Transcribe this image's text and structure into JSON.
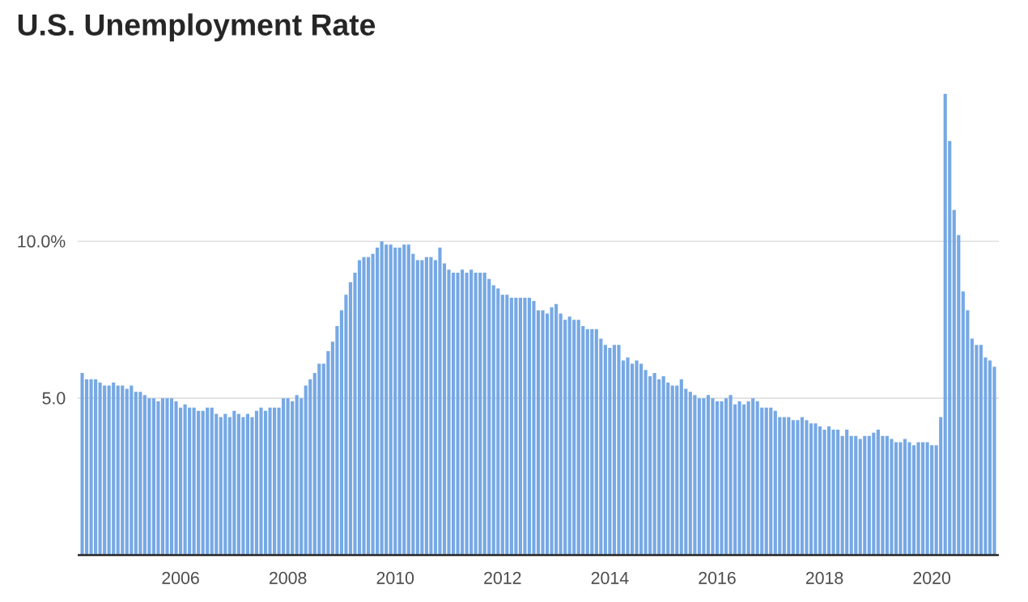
{
  "chart_data": {
    "type": "bar",
    "title": "U.S. Unemployment Rate",
    "color": "#76a8e4",
    "grid": "y",
    "x": [
      "2004-03",
      "2004-04",
      "2004-05",
      "2004-06",
      "2004-07",
      "2004-08",
      "2004-09",
      "2004-10",
      "2004-11",
      "2004-12",
      "2005-01",
      "2005-02",
      "2005-03",
      "2005-04",
      "2005-05",
      "2005-06",
      "2005-07",
      "2005-08",
      "2005-09",
      "2005-10",
      "2005-11",
      "2005-12",
      "2006-01",
      "2006-02",
      "2006-03",
      "2006-04",
      "2006-05",
      "2006-06",
      "2006-07",
      "2006-08",
      "2006-09",
      "2006-10",
      "2006-11",
      "2006-12",
      "2007-01",
      "2007-02",
      "2007-03",
      "2007-04",
      "2007-05",
      "2007-06",
      "2007-07",
      "2007-08",
      "2007-09",
      "2007-10",
      "2007-11",
      "2007-12",
      "2008-01",
      "2008-02",
      "2008-03",
      "2008-04",
      "2008-05",
      "2008-06",
      "2008-07",
      "2008-08",
      "2008-09",
      "2008-10",
      "2008-11",
      "2008-12",
      "2009-01",
      "2009-02",
      "2009-03",
      "2009-04",
      "2009-05",
      "2009-06",
      "2009-07",
      "2009-08",
      "2009-09",
      "2009-10",
      "2009-11",
      "2009-12",
      "2010-01",
      "2010-02",
      "2010-03",
      "2010-04",
      "2010-05",
      "2010-06",
      "2010-07",
      "2010-08",
      "2010-09",
      "2010-10",
      "2010-11",
      "2010-12",
      "2011-01",
      "2011-02",
      "2011-03",
      "2011-04",
      "2011-05",
      "2011-06",
      "2011-07",
      "2011-08",
      "2011-09",
      "2011-10",
      "2011-11",
      "2011-12",
      "2012-01",
      "2012-02",
      "2012-03",
      "2012-04",
      "2012-05",
      "2012-06",
      "2012-07",
      "2012-08",
      "2012-09",
      "2012-10",
      "2012-11",
      "2012-12",
      "2013-01",
      "2013-02",
      "2013-03",
      "2013-04",
      "2013-05",
      "2013-06",
      "2013-07",
      "2013-08",
      "2013-09",
      "2013-10",
      "2013-11",
      "2013-12",
      "2014-01",
      "2014-02",
      "2014-03",
      "2014-04",
      "2014-05",
      "2014-06",
      "2014-07",
      "2014-08",
      "2014-09",
      "2014-10",
      "2014-11",
      "2014-12",
      "2015-01",
      "2015-02",
      "2015-03",
      "2015-04",
      "2015-05",
      "2015-06",
      "2015-07",
      "2015-08",
      "2015-09",
      "2015-10",
      "2015-11",
      "2015-12",
      "2016-01",
      "2016-02",
      "2016-03",
      "2016-04",
      "2016-05",
      "2016-06",
      "2016-07",
      "2016-08",
      "2016-09",
      "2016-10",
      "2016-11",
      "2016-12",
      "2017-01",
      "2017-02",
      "2017-03",
      "2017-04",
      "2017-05",
      "2017-06",
      "2017-07",
      "2017-08",
      "2017-09",
      "2017-10",
      "2017-11",
      "2017-12",
      "2018-01",
      "2018-02",
      "2018-03",
      "2018-04",
      "2018-05",
      "2018-06",
      "2018-07",
      "2018-08",
      "2018-09",
      "2018-10",
      "2018-11",
      "2018-12",
      "2019-01",
      "2019-02",
      "2019-03",
      "2019-04",
      "2019-05",
      "2019-06",
      "2019-07",
      "2019-08",
      "2019-09",
      "2019-10",
      "2019-11",
      "2019-12",
      "2020-01",
      "2020-02",
      "2020-03",
      "2020-04",
      "2020-05",
      "2020-06",
      "2020-07",
      "2020-08",
      "2020-09",
      "2020-10",
      "2020-11",
      "2020-12",
      "2021-01",
      "2021-02",
      "2021-03"
    ],
    "values": [
      5.8,
      5.6,
      5.6,
      5.6,
      5.5,
      5.4,
      5.4,
      5.5,
      5.4,
      5.4,
      5.3,
      5.4,
      5.2,
      5.2,
      5.1,
      5.0,
      5.0,
      4.9,
      5.0,
      5.0,
      5.0,
      4.9,
      4.7,
      4.8,
      4.7,
      4.7,
      4.6,
      4.6,
      4.7,
      4.7,
      4.5,
      4.4,
      4.5,
      4.4,
      4.6,
      4.5,
      4.4,
      4.5,
      4.4,
      4.6,
      4.7,
      4.6,
      4.7,
      4.7,
      4.7,
      5.0,
      5.0,
      4.9,
      5.1,
      5.0,
      5.4,
      5.6,
      5.8,
      6.1,
      6.1,
      6.5,
      6.8,
      7.3,
      7.8,
      8.3,
      8.7,
      9.0,
      9.4,
      9.5,
      9.5,
      9.6,
      9.8,
      10.0,
      9.9,
      9.9,
      9.8,
      9.8,
      9.9,
      9.9,
      9.6,
      9.4,
      9.4,
      9.5,
      9.5,
      9.4,
      9.8,
      9.3,
      9.1,
      9.0,
      9.0,
      9.1,
      9.0,
      9.1,
      9.0,
      9.0,
      9.0,
      8.8,
      8.6,
      8.5,
      8.3,
      8.3,
      8.2,
      8.2,
      8.2,
      8.2,
      8.2,
      8.1,
      7.8,
      7.8,
      7.7,
      7.9,
      8.0,
      7.7,
      7.5,
      7.6,
      7.5,
      7.5,
      7.3,
      7.2,
      7.2,
      7.2,
      6.9,
      6.7,
      6.6,
      6.7,
      6.7,
      6.2,
      6.3,
      6.1,
      6.2,
      6.1,
      5.9,
      5.7,
      5.8,
      5.6,
      5.7,
      5.5,
      5.4,
      5.4,
      5.6,
      5.3,
      5.2,
      5.1,
      5.0,
      5.0,
      5.1,
      5.0,
      4.9,
      4.9,
      5.0,
      5.1,
      4.8,
      4.9,
      4.8,
      4.9,
      5.0,
      4.9,
      4.7,
      4.7,
      4.7,
      4.6,
      4.4,
      4.4,
      4.4,
      4.3,
      4.3,
      4.4,
      4.3,
      4.2,
      4.2,
      4.1,
      4.0,
      4.1,
      4.0,
      4.0,
      3.8,
      4.0,
      3.8,
      3.8,
      3.7,
      3.8,
      3.8,
      3.9,
      4.0,
      3.8,
      3.8,
      3.7,
      3.6,
      3.6,
      3.7,
      3.6,
      3.5,
      3.6,
      3.6,
      3.6,
      3.5,
      3.5,
      4.4,
      14.7,
      13.2,
      11.0,
      10.2,
      8.4,
      7.8,
      6.9,
      6.7,
      6.7,
      6.3,
      6.2,
      6.0
    ],
    "xlim": [
      "2004-02",
      "2021-04"
    ],
    "xticks": [
      "2006",
      "2008",
      "2010",
      "2012",
      "2014",
      "2016",
      "2018",
      "2020"
    ],
    "ylim": [
      0,
      14.7
    ],
    "yticks": [
      {
        "value": 0,
        "label": null
      },
      {
        "value": 5,
        "label": "5.0"
      },
      {
        "value": 10,
        "label": "10.0%"
      }
    ]
  }
}
